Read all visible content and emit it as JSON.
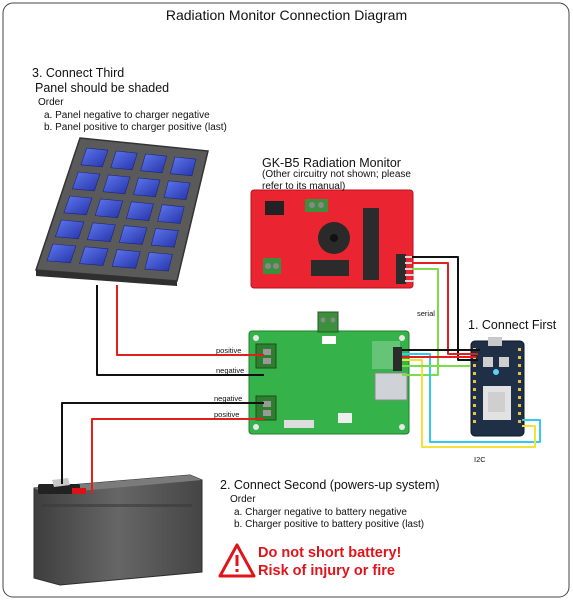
{
  "title": "Radiation Monitor Connection Diagram",
  "step3": {
    "heading": "3. Connect Third",
    "subheading": "Panel should be shaded",
    "order_label": "Order",
    "items": [
      "a. Panel negative to charger negative",
      "b. Panel positive to charger positive (last)"
    ]
  },
  "monitor": {
    "name": "GK-B5 Radiation Monitor",
    "note_line1": "(Other circuitry not shown; please",
    "note_line2": "refer to its manual)"
  },
  "step1": {
    "heading": "1. Connect First"
  },
  "step2": {
    "heading": "2. Connect Second (powers-up system)",
    "order_label": "Order",
    "items": [
      "a. Charger negative to battery negative",
      "b. Charger positive to battery positive (last)"
    ]
  },
  "warning": {
    "line1": "Do not short battery!",
    "line2": "Risk of injury or fire"
  },
  "wire_labels": {
    "panel_positive": "positive",
    "panel_negative": "negative",
    "battery_negative": "negative",
    "battery_positive": "positive",
    "serial": "serial",
    "i2c": "I2C"
  },
  "colors": {
    "red_wire": "#e21f1f",
    "black_wire": "#111111",
    "green_wire": "#7ddc4a",
    "cyan_wire": "#35c8f0",
    "yellow_wire": "#f2e23a",
    "monitor_board": "#ea2431",
    "charger_board": "#35b24a",
    "photon_board": "#1f2f45",
    "solar_cell": "#2f45c7",
    "battery_body": "#545454",
    "warning_red": "#e0141b"
  }
}
